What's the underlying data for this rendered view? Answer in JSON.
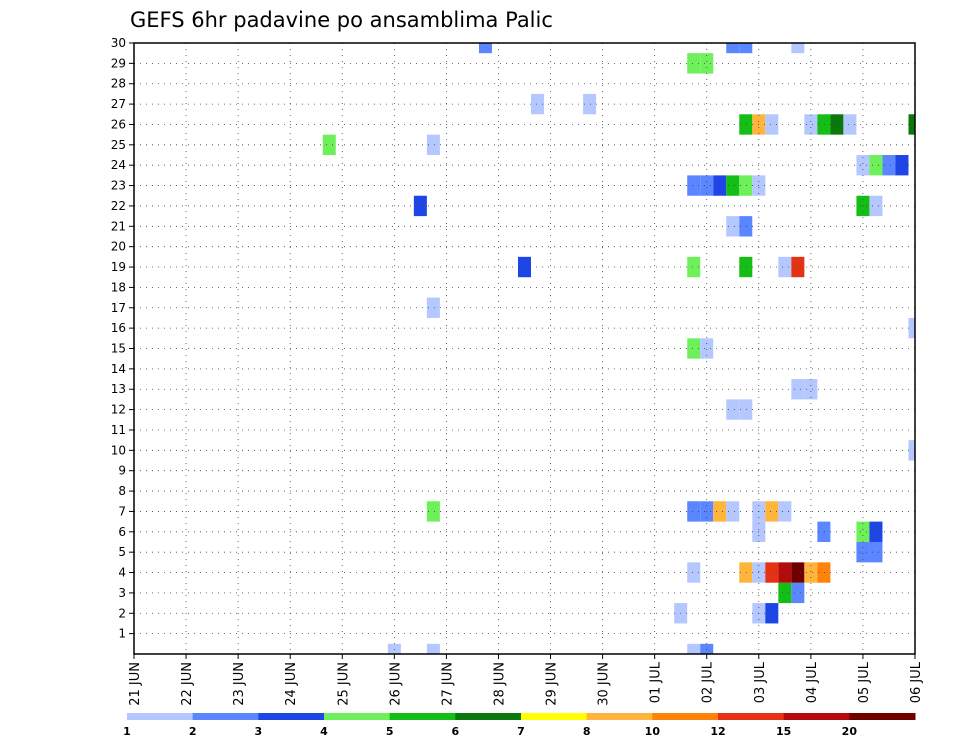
{
  "chart_data": {
    "type": "heatmap",
    "title": "GEFS 6hr padavine po ansamblima Palic",
    "x_tick_labels": [
      "21 JUN",
      "22 JUN",
      "23 JUN",
      "24 JUN",
      "25 JUN",
      "26 JUN",
      "27 JUN",
      "28 JUN",
      "29 JUN",
      "30 JUN",
      "01 JUL",
      "02 JUL",
      "03 JUL",
      "04 JUL",
      "05 JUL",
      "06 JUL"
    ],
    "y_tick_labels": [
      "1",
      "2",
      "3",
      "4",
      "5",
      "6",
      "7",
      "8",
      "9",
      "10",
      "11",
      "12",
      "13",
      "14",
      "15",
      "16",
      "17",
      "18",
      "19",
      "20",
      "21",
      "22",
      "23",
      "24",
      "25",
      "26",
      "27",
      "28",
      "29",
      "30"
    ],
    "x_range": [
      "21 JUN 00",
      "06 JUL 00"
    ],
    "y_range": [
      0,
      30
    ],
    "time_step_hours": 6,
    "grid": true,
    "colorbar": {
      "orientation": "horizontal",
      "placement": "bottom",
      "labels": [
        "1",
        "2",
        "3",
        "4",
        "5",
        "6",
        "7",
        "8",
        "10",
        "12",
        "15",
        "20"
      ],
      "colors": [
        "#b4c8ff",
        "#5a87ff",
        "#1e46e6",
        "#6ef05a",
        "#14be14",
        "#0a780a",
        "#ffff00",
        "#ffb43c",
        "#ff820a",
        "#e63214",
        "#b40a0a",
        "#6e0000"
      ]
    },
    "cells": [
      {
        "t": "01 JUL 18",
        "m": 0,
        "c": 0
      },
      {
        "t": "02 JUL 00",
        "m": 0,
        "c": 1
      },
      {
        "t": "26 JUN 00",
        "m": 0,
        "c": 0
      },
      {
        "t": "26 JUN 18",
        "m": 0,
        "c": 0
      },
      {
        "t": "01 JUL 12",
        "m": 2,
        "c": 0
      },
      {
        "t": "03 JUL 00",
        "m": 2,
        "c": 0
      },
      {
        "t": "03 JUL 06",
        "m": 2,
        "c": 2
      },
      {
        "t": "03 JUL 12",
        "m": 3,
        "c": 4
      },
      {
        "t": "03 JUL 18",
        "m": 3,
        "c": 1
      },
      {
        "t": "01 JUL 18",
        "m": 4,
        "c": 0
      },
      {
        "t": "02 JUL 18",
        "m": 4,
        "c": 7
      },
      {
        "t": "03 JUL 00",
        "m": 4,
        "c": 0
      },
      {
        "t": "03 JUL 06",
        "m": 4,
        "c": 9
      },
      {
        "t": "03 JUL 12",
        "m": 4,
        "c": 10
      },
      {
        "t": "03 JUL 18",
        "m": 4,
        "c": 11
      },
      {
        "t": "04 JUL 00",
        "m": 4,
        "c": 7
      },
      {
        "t": "04 JUL 06",
        "m": 4,
        "c": 8
      },
      {
        "t": "05 JUL 00",
        "m": 5,
        "c": 1
      },
      {
        "t": "05 JUL 06",
        "m": 5,
        "c": 1
      },
      {
        "t": "03 JUL 00",
        "m": 6,
        "c": 0
      },
      {
        "t": "04 JUL 06",
        "m": 6,
        "c": 1
      },
      {
        "t": "05 JUL 00",
        "m": 6,
        "c": 3
      },
      {
        "t": "05 JUL 06",
        "m": 6,
        "c": 2
      },
      {
        "t": "26 JUN 18",
        "m": 7,
        "c": 3
      },
      {
        "t": "01 JUL 18",
        "m": 7,
        "c": 1
      },
      {
        "t": "02 JUL 00",
        "m": 7,
        "c": 1
      },
      {
        "t": "02 JUL 06",
        "m": 7,
        "c": 7
      },
      {
        "t": "02 JUL 12",
        "m": 7,
        "c": 0
      },
      {
        "t": "03 JUL 00",
        "m": 7,
        "c": 0
      },
      {
        "t": "03 JUL 06",
        "m": 7,
        "c": 7
      },
      {
        "t": "03 JUL 12",
        "m": 7,
        "c": 0
      },
      {
        "t": "06 JUL 00",
        "m": 10,
        "c": 0
      },
      {
        "t": "02 JUL 12",
        "m": 12,
        "c": 0
      },
      {
        "t": "02 JUL 18",
        "m": 12,
        "c": 0
      },
      {
        "t": "03 JUL 18",
        "m": 13,
        "c": 0
      },
      {
        "t": "04 JUL 00",
        "m": 13,
        "c": 0
      },
      {
        "t": "01 JUL 18",
        "m": 15,
        "c": 3
      },
      {
        "t": "02 JUL 00",
        "m": 15,
        "c": 0
      },
      {
        "t": "06 JUL 00",
        "m": 16,
        "c": 0
      },
      {
        "t": "26 JUN 18",
        "m": 17,
        "c": 0
      },
      {
        "t": "28 JUN 12",
        "m": 19,
        "c": 2
      },
      {
        "t": "01 JUL 18",
        "m": 19,
        "c": 3
      },
      {
        "t": "02 JUL 18",
        "m": 19,
        "c": 4
      },
      {
        "t": "03 JUL 12",
        "m": 19,
        "c": 0
      },
      {
        "t": "03 JUL 18",
        "m": 19,
        "c": 9
      },
      {
        "t": "02 JUL 12",
        "m": 21,
        "c": 0
      },
      {
        "t": "02 JUL 18",
        "m": 21,
        "c": 1
      },
      {
        "t": "26 JUN 12",
        "m": 22,
        "c": 2
      },
      {
        "t": "05 JUL 00",
        "m": 22,
        "c": 4
      },
      {
        "t": "05 JUL 06",
        "m": 22,
        "c": 0
      },
      {
        "t": "01 JUL 18",
        "m": 23,
        "c": 1
      },
      {
        "t": "02 JUL 00",
        "m": 23,
        "c": 1
      },
      {
        "t": "02 JUL 06",
        "m": 23,
        "c": 2
      },
      {
        "t": "02 JUL 12",
        "m": 23,
        "c": 4
      },
      {
        "t": "02 JUL 18",
        "m": 23,
        "c": 3
      },
      {
        "t": "03 JUL 00",
        "m": 23,
        "c": 0
      },
      {
        "t": "05 JUL 00",
        "m": 24,
        "c": 0
      },
      {
        "t": "05 JUL 06",
        "m": 24,
        "c": 3
      },
      {
        "t": "05 JUL 12",
        "m": 24,
        "c": 1
      },
      {
        "t": "05 JUL 18",
        "m": 24,
        "c": 2
      },
      {
        "t": "24 JUN 18",
        "m": 25,
        "c": 3
      },
      {
        "t": "26 JUN 18",
        "m": 25,
        "c": 0
      },
      {
        "t": "02 JUL 18",
        "m": 26,
        "c": 4
      },
      {
        "t": "03 JUL 00",
        "m": 26,
        "c": 7
      },
      {
        "t": "03 JUL 06",
        "m": 26,
        "c": 0
      },
      {
        "t": "04 JUL 00",
        "m": 26,
        "c": 0
      },
      {
        "t": "04 JUL 06",
        "m": 26,
        "c": 4
      },
      {
        "t": "04 JUL 12",
        "m": 26,
        "c": 5
      },
      {
        "t": "04 JUL 18",
        "m": 26,
        "c": 0
      },
      {
        "t": "06 JUL 00",
        "m": 26,
        "c": 5
      },
      {
        "t": "28 JUN 18",
        "m": 27,
        "c": 0
      },
      {
        "t": "29 JUN 18",
        "m": 27,
        "c": 0
      },
      {
        "t": "01 JUL 18",
        "m": 29,
        "c": 3
      },
      {
        "t": "02 JUL 00",
        "m": 29,
        "c": 3
      },
      {
        "t": "27 JUN 18",
        "m": 30,
        "c": 1
      },
      {
        "t": "02 JUL 12",
        "m": 30,
        "c": 1
      },
      {
        "t": "02 JUL 18",
        "m": 30,
        "c": 1
      },
      {
        "t": "03 JUL 18",
        "m": 30,
        "c": 0
      }
    ]
  }
}
